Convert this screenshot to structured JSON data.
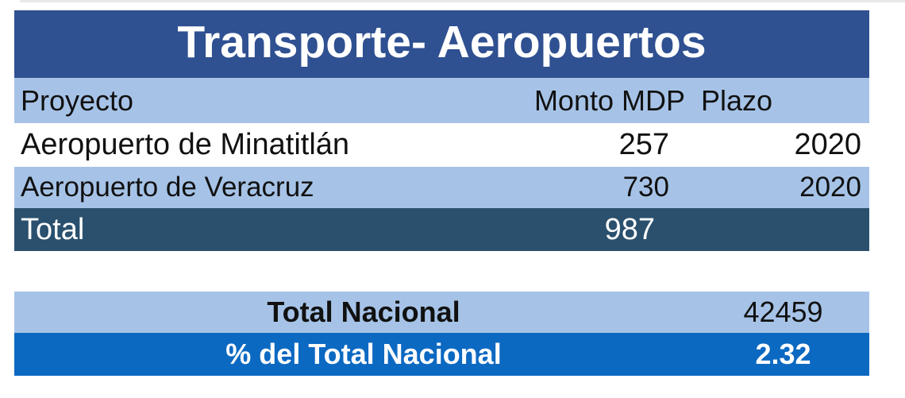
{
  "title": "Transporte- Aeropuertos",
  "table": {
    "headers": {
      "proyecto": "Proyecto",
      "monto": "Monto MDP",
      "plazo": "Plazo"
    },
    "rows": [
      {
        "proyecto": "Aeropuerto de Minatitlán",
        "monto": "257",
        "plazo": "2020"
      },
      {
        "proyecto": "Aeropuerto de Veracruz",
        "monto": "730",
        "plazo": "2020"
      }
    ],
    "total": {
      "label": "Total",
      "monto": "987"
    }
  },
  "summary": {
    "total_nacional": {
      "label": "Total Nacional",
      "value": "42459"
    },
    "pct_total_nacional": {
      "label": "% del Total Nacional",
      "value": "2.32"
    }
  },
  "colors": {
    "title_bar": "#2F5091",
    "light_row": "#A6C3E7",
    "white_row": "#FFFFFF",
    "total_row": "#2A506E",
    "accent_row": "#0C69C2",
    "title_text": "#FFFFFF",
    "body_text": "#111111",
    "top_edge": "#E9E9E9"
  },
  "chart_data": {
    "type": "table",
    "title": "Transporte- Aeropuertos",
    "columns": [
      "Proyecto",
      "Monto MDP",
      "Plazo"
    ],
    "rows": [
      [
        "Aeropuerto de Minatitlán",
        257,
        2020
      ],
      [
        "Aeropuerto de Veracruz",
        730,
        2020
      ]
    ],
    "total_row": [
      "Total",
      987,
      ""
    ],
    "summary_rows": [
      [
        "Total Nacional",
        42459
      ],
      [
        "% del Total Nacional",
        2.32
      ]
    ],
    "legend_position": "none",
    "grid": false
  }
}
